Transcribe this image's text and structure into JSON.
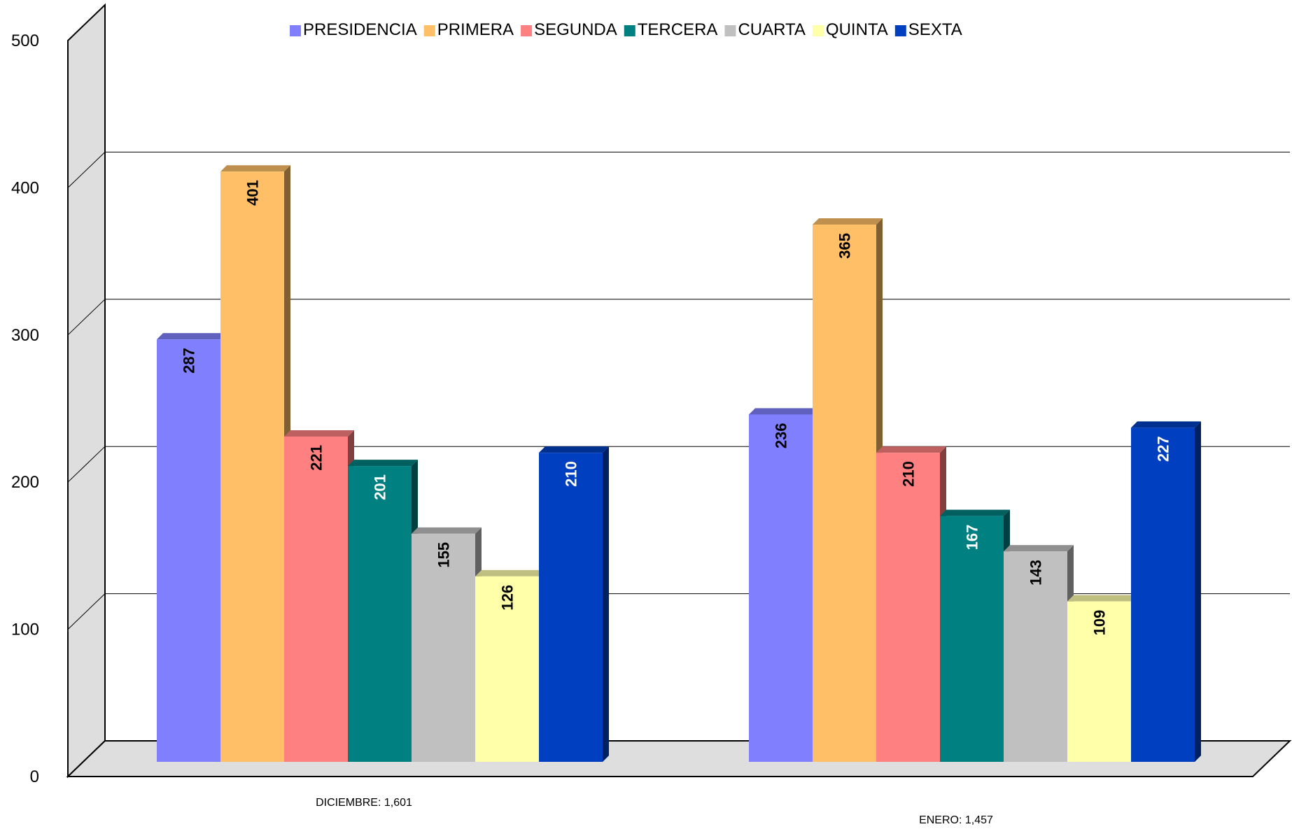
{
  "chart_data": {
    "type": "bar",
    "view": "3d-clustered-column",
    "categories": [
      "DICIEMBRE:  1,601",
      "ENERO: 1,457"
    ],
    "series": [
      {
        "name": "PRESIDENCIA",
        "values": [
          287,
          236
        ],
        "color": "#8080ff",
        "label_color": "#000000"
      },
      {
        "name": "PRIMERA",
        "values": [
          401,
          365
        ],
        "color": "#ffbf66",
        "label_color": "#000000"
      },
      {
        "name": "SEGUNDA",
        "values": [
          221,
          210
        ],
        "color": "#ff8080",
        "label_color": "#000000"
      },
      {
        "name": "TERCERA",
        "values": [
          201,
          167
        ],
        "color": "#008080",
        "label_color": "#ffffff"
      },
      {
        "name": "CUARTA",
        "values": [
          155,
          143
        ],
        "color": "#c0c0c0",
        "label_color": "#000000"
      },
      {
        "name": "QUINTA",
        "values": [
          126,
          109
        ],
        "color": "#ffffaa",
        "label_color": "#000000"
      },
      {
        "name": "SEXTA",
        "values": [
          210,
          227
        ],
        "color": "#0040c0",
        "label_color": "#ffffff"
      }
    ],
    "y_ticks": [
      "0",
      "100",
      "200",
      "300",
      "400",
      "500"
    ],
    "ylim": [
      0,
      500
    ],
    "grid": true,
    "legend_position": "top",
    "data_labels": "rotated-inside-top"
  }
}
